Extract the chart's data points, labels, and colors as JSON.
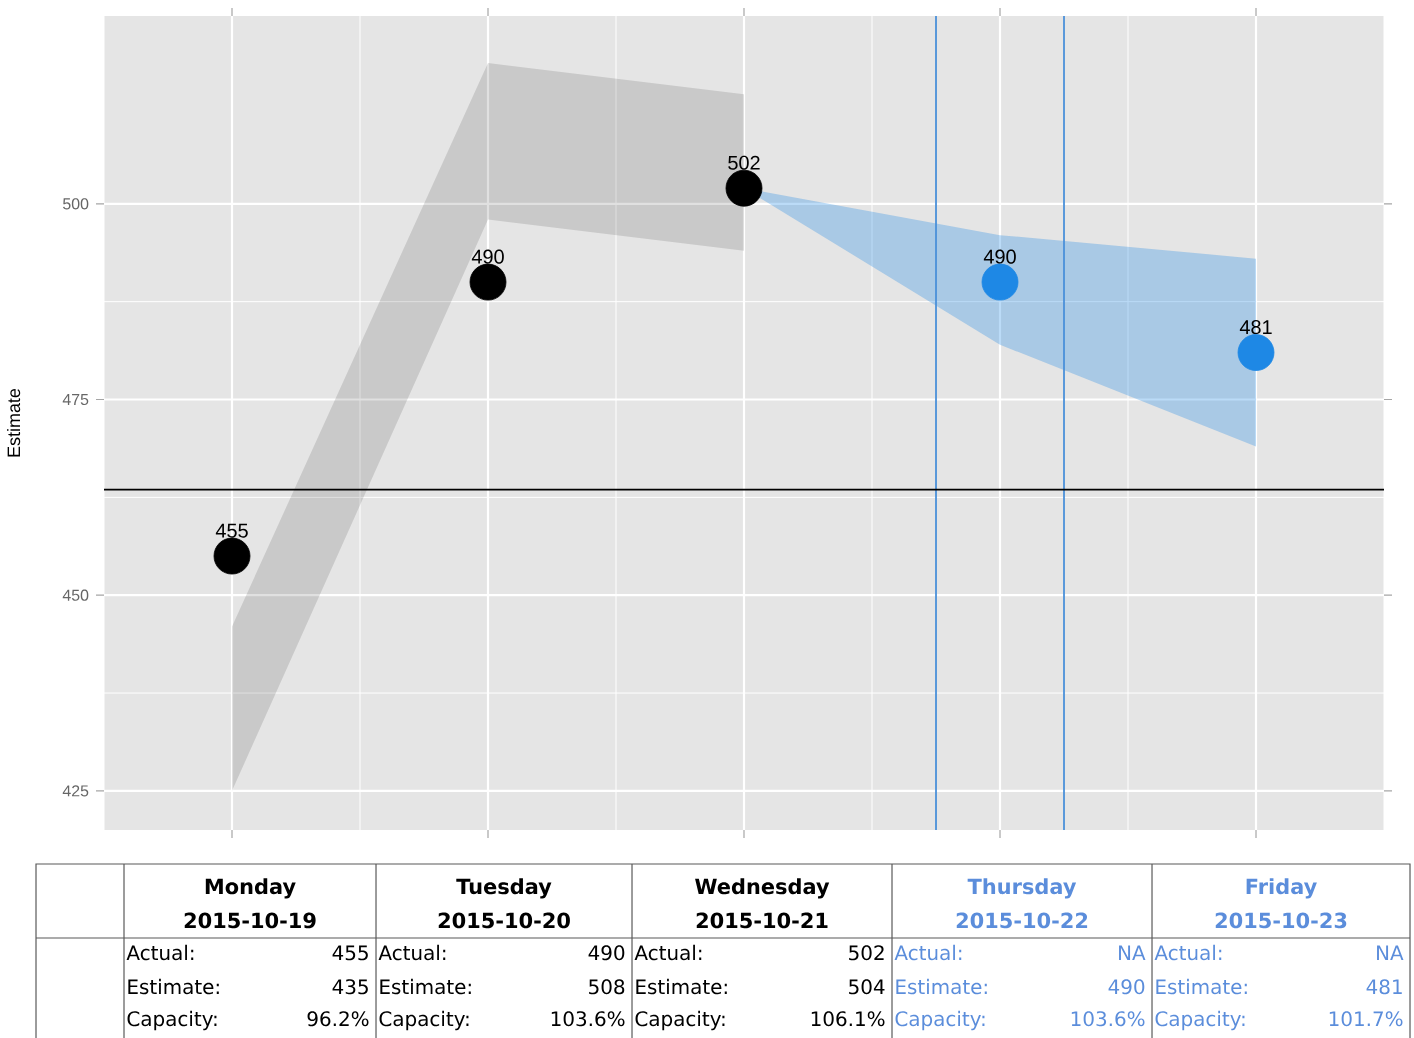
{
  "chart_data": {
    "type": "scatter",
    "ylabel": "Estimate",
    "categories": [
      null,
      null,
      null,
      null,
      null
    ],
    "series": [
      {
        "color": "#000000",
        "values": [
          455,
          490,
          502,
          null,
          null
        ],
        "lower": [
          425,
          498,
          494,
          null,
          null
        ],
        "upper": [
          446,
          518,
          514,
          null,
          null
        ]
      },
      {
        "color": "#1e88e5",
        "values": [
          null,
          null,
          null,
          490,
          481
        ],
        "lower": [
          null,
          null,
          502,
          482,
          469
        ],
        "upper": [
          null,
          null,
          502,
          496,
          493
        ]
      }
    ],
    "ylim": [
      420,
      524
    ],
    "yticks": [
      425,
      450,
      475,
      500
    ],
    "ref_lines": [
      {
        "axis": "y",
        "value": 463.5,
        "color": "#000000"
      }
    ],
    "data_labels": true,
    "grid": true,
    "marker": "circle",
    "annotations": [
      "Monday",
      "2015-10-19",
      "Actual:",
      "455",
      "Estimate:",
      "435",
      "Capacity:",
      "96.2%",
      "Tuesday",
      "2015-10-20",
      "Actual:",
      "490",
      "Estimate:",
      "508",
      "Capacity:",
      "103.6%",
      "Wednesday",
      "2015-10-21",
      "Actual:",
      "502",
      "Estimate:",
      "504",
      "Capacity:",
      "106.1%",
      "Thursday",
      "2015-10-22",
      "Actual:",
      "NA",
      "Estimate:",
      "490",
      "Capacity:",
      "103.6%",
      "Friday",
      "2015-10-23",
      "Actual:",
      "NA",
      "Estimate:",
      "481",
      "Capacity:",
      "101.7%"
    ]
  }
}
